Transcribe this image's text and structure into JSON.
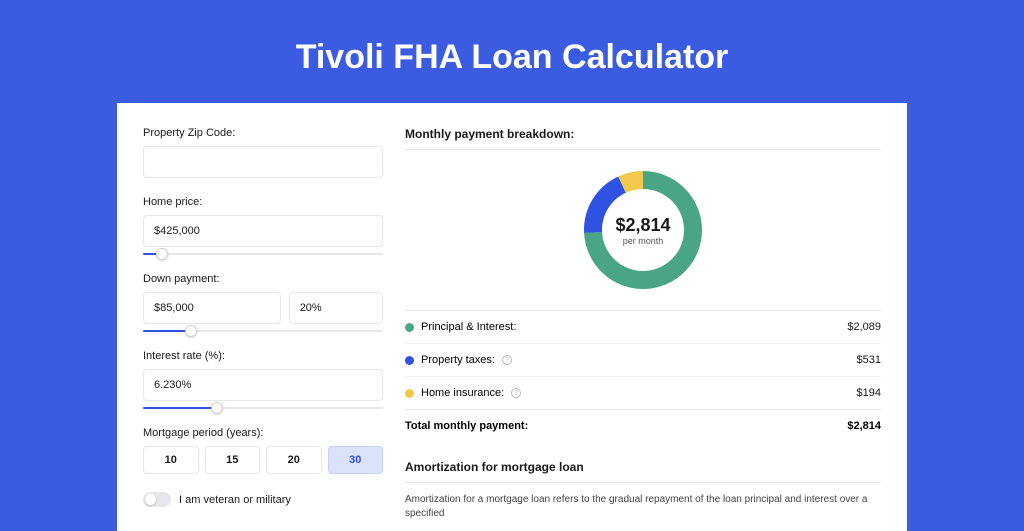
{
  "page": {
    "title": "Tivoli FHA Loan Calculator",
    "bg_color": "#2f52e0",
    "band_color": "#3b5be0",
    "card_bg": "#ffffff"
  },
  "form": {
    "zip": {
      "label": "Property Zip Code:",
      "value": ""
    },
    "home_price": {
      "label": "Home price:",
      "value": "$425,000",
      "slider_pct": 8
    },
    "down_payment": {
      "label": "Down payment:",
      "amount": "$85,000",
      "percent": "20%",
      "slider_pct": 20
    },
    "interest_rate": {
      "label": "Interest rate (%):",
      "value": "6.230%",
      "slider_pct": 31
    },
    "period": {
      "label": "Mortgage period (years):",
      "options": [
        "10",
        "15",
        "20",
        "30"
      ],
      "selected": "30"
    },
    "veteran": {
      "label": "I am veteran or military",
      "checked": false
    }
  },
  "breakdown": {
    "header": "Monthly payment breakdown:",
    "donut": {
      "amount": "$2,814",
      "sub": "per month",
      "segments": [
        {
          "key": "principal_interest",
          "value": 2089,
          "color": "#4aa586"
        },
        {
          "key": "property_taxes",
          "value": 531,
          "color": "#2f52e0"
        },
        {
          "key": "home_insurance",
          "value": 194,
          "color": "#f2c94c"
        }
      ],
      "total": 2814,
      "thickness": 18,
      "radius": 50
    },
    "rows": [
      {
        "label": "Principal & Interest:",
        "value": "$2,089",
        "color": "#4aa586",
        "info": false
      },
      {
        "label": "Property taxes:",
        "value": "$531",
        "color": "#2f52e0",
        "info": true
      },
      {
        "label": "Home insurance:",
        "value": "$194",
        "color": "#f2c94c",
        "info": true
      }
    ],
    "total": {
      "label": "Total monthly payment:",
      "value": "$2,814"
    }
  },
  "amortization": {
    "header": "Amortization for mortgage loan",
    "body": "Amortization for a mortgage loan refers to the gradual repayment of the loan principal and interest over a specified"
  }
}
